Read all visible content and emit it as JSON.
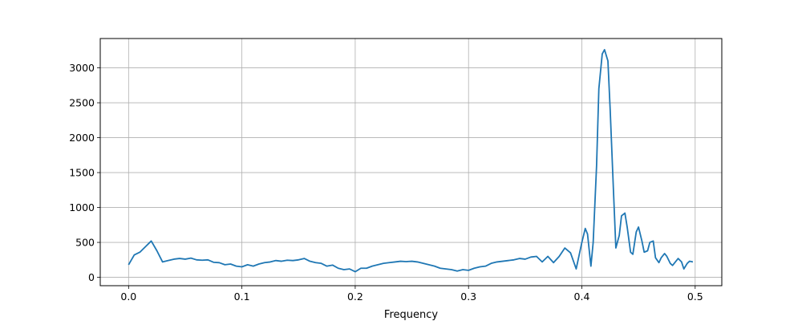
{
  "chart_data": {
    "type": "line",
    "title": "",
    "xlabel": "Frequency",
    "ylabel": "",
    "xlim": [
      -0.025,
      0.5235
    ],
    "ylim": [
      -120,
      3420
    ],
    "grid": true,
    "xticks": [
      0.0,
      0.1,
      0.2,
      0.3,
      0.4,
      0.5
    ],
    "xtick_labels": [
      "0.0",
      "0.1",
      "0.2",
      "0.3",
      "0.4",
      "0.5"
    ],
    "yticks": [
      0,
      500,
      1000,
      1500,
      2000,
      2500,
      3000
    ],
    "ytick_labels": [
      "0",
      "500",
      "1000",
      "1500",
      "2000",
      "2500",
      "3000"
    ],
    "series": [
      {
        "color": "#1f77b4",
        "x": [
          0.0,
          0.005,
          0.01,
          0.015,
          0.02,
          0.025,
          0.03,
          0.035,
          0.04,
          0.045,
          0.05,
          0.055,
          0.06,
          0.065,
          0.07,
          0.075,
          0.08,
          0.085,
          0.09,
          0.095,
          0.1,
          0.105,
          0.11,
          0.115,
          0.12,
          0.125,
          0.13,
          0.135,
          0.14,
          0.145,
          0.15,
          0.155,
          0.16,
          0.165,
          0.17,
          0.175,
          0.18,
          0.185,
          0.19,
          0.195,
          0.2,
          0.205,
          0.21,
          0.215,
          0.22,
          0.225,
          0.23,
          0.235,
          0.24,
          0.245,
          0.25,
          0.255,
          0.26,
          0.265,
          0.27,
          0.275,
          0.28,
          0.285,
          0.29,
          0.295,
          0.3,
          0.305,
          0.31,
          0.315,
          0.32,
          0.325,
          0.33,
          0.335,
          0.34,
          0.345,
          0.35,
          0.355,
          0.36,
          0.365,
          0.37,
          0.375,
          0.38,
          0.385,
          0.39,
          0.395,
          0.4,
          0.403,
          0.405,
          0.408,
          0.41,
          0.413,
          0.415,
          0.418,
          0.42,
          0.423,
          0.425,
          0.428,
          0.43,
          0.433,
          0.435,
          0.438,
          0.44,
          0.443,
          0.445,
          0.448,
          0.45,
          0.453,
          0.455,
          0.458,
          0.46,
          0.463,
          0.465,
          0.468,
          0.47,
          0.473,
          0.475,
          0.478,
          0.48,
          0.483,
          0.485,
          0.488,
          0.49,
          0.493,
          0.495,
          0.498
        ],
        "y": [
          180,
          320,
          360,
          440,
          520,
          380,
          220,
          240,
          260,
          270,
          260,
          275,
          250,
          245,
          250,
          215,
          210,
          180,
          190,
          160,
          150,
          180,
          160,
          190,
          210,
          220,
          240,
          230,
          245,
          240,
          250,
          270,
          230,
          210,
          200,
          160,
          175,
          130,
          110,
          120,
          80,
          130,
          130,
          160,
          180,
          200,
          210,
          220,
          230,
          225,
          230,
          220,
          200,
          180,
          160,
          130,
          120,
          110,
          90,
          110,
          100,
          130,
          150,
          160,
          200,
          220,
          230,
          240,
          250,
          270,
          260,
          290,
          300,
          220,
          300,
          210,
          300,
          420,
          350,
          120,
          500,
          700,
          620,
          160,
          500,
          1600,
          2700,
          3200,
          3260,
          3100,
          2400,
          1200,
          420,
          600,
          880,
          920,
          720,
          360,
          330,
          650,
          720,
          520,
          360,
          380,
          500,
          520,
          280,
          210,
          280,
          340,
          300,
          200,
          170,
          230,
          270,
          220,
          120,
          200,
          230,
          220
        ]
      }
    ]
  }
}
